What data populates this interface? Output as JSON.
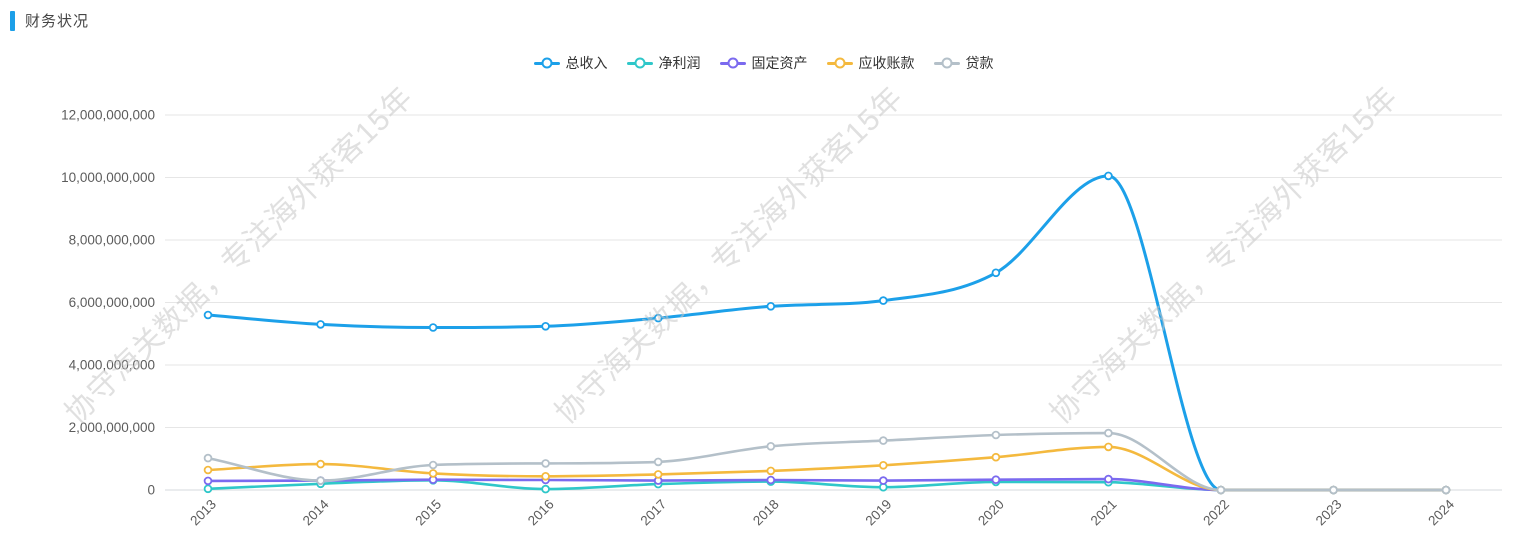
{
  "header": {
    "title": "财务状况",
    "accent_color": "#1c9fe8"
  },
  "watermark": {
    "text": "协守海关数据，专注海外获客15年"
  },
  "chart_data": {
    "type": "line",
    "smooth": true,
    "grid": true,
    "legend_position": "top-center",
    "categories": [
      "2013",
      "2014",
      "2015",
      "2016",
      "2017",
      "2018",
      "2019",
      "2020",
      "2021",
      "2022",
      "2023",
      "2024"
    ],
    "series": [
      {
        "name": "总收入",
        "color": "#1ca0e9",
        "values": [
          5600000000,
          5300000000,
          5200000000,
          5240000000,
          5500000000,
          5880000000,
          6060000000,
          6950000000,
          10050000000,
          0,
          0,
          0
        ]
      },
      {
        "name": "净利润",
        "color": "#2fc7c9",
        "values": [
          40000000,
          200000000,
          310000000,
          30000000,
          190000000,
          270000000,
          90000000,
          260000000,
          250000000,
          0,
          0,
          0
        ]
      },
      {
        "name": "固定资产",
        "color": "#7b6aef",
        "values": [
          290000000,
          300000000,
          330000000,
          320000000,
          300000000,
          320000000,
          300000000,
          330000000,
          350000000,
          0,
          0,
          0
        ]
      },
      {
        "name": "应收账款",
        "color": "#f4b93e",
        "values": [
          640000000,
          830000000,
          530000000,
          440000000,
          500000000,
          610000000,
          790000000,
          1050000000,
          1380000000,
          0,
          0,
          0
        ]
      },
      {
        "name": "贷款",
        "color": "#b4c0c9",
        "values": [
          1020000000,
          300000000,
          800000000,
          850000000,
          900000000,
          1400000000,
          1580000000,
          1760000000,
          1820000000,
          0,
          0,
          0
        ]
      }
    ],
    "xlabel": "",
    "ylabel": "",
    "ylim": [
      0,
      12000000000
    ],
    "y_tick_step": 2000000000,
    "y_tick_labels": [
      "0",
      "2,000,000,000",
      "4,000,000,000",
      "6,000,000,000",
      "8,000,000,000",
      "10,000,000,000",
      "12,000,000,000"
    ]
  }
}
